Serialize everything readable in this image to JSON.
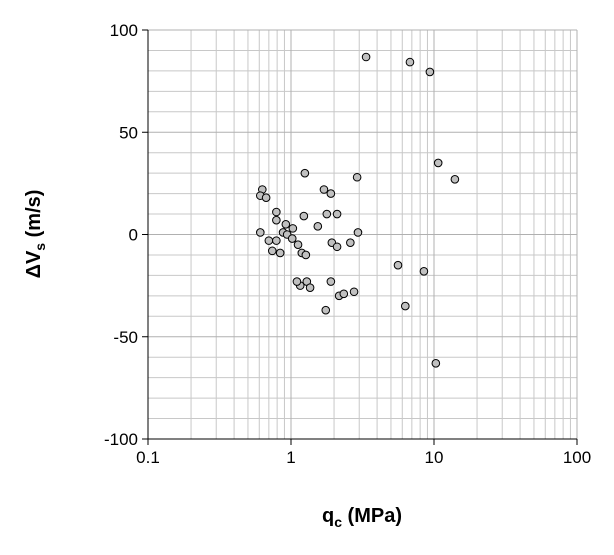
{
  "chart_data": {
    "type": "scatter",
    "log_x": true,
    "grid": true,
    "xlabel": [
      "q",
      "c",
      " (MPa)"
    ],
    "ylabel": [
      "ΔV",
      "s",
      " (m/s)"
    ],
    "xlim": [
      0.1,
      100
    ],
    "xticks": [
      0.1,
      1,
      10,
      100
    ],
    "ylim": [
      -100,
      100
    ],
    "yticks": [
      -100,
      -50,
      0,
      50,
      100
    ],
    "x_minor_grid": [
      0.2,
      0.3,
      0.4,
      0.5,
      0.6,
      0.7,
      0.8,
      0.9,
      2,
      3,
      4,
      5,
      6,
      7,
      8,
      9,
      20,
      30,
      40,
      50,
      60,
      70,
      80,
      90
    ],
    "y_minor_grid": [
      -90,
      -80,
      -70,
      -60,
      -40,
      -30,
      -20,
      -10,
      10,
      20,
      30,
      40,
      60,
      70,
      80,
      90
    ],
    "marker_color": "#c0c0c0",
    "x": [
      3.35,
      6.79,
      9.36,
      10.7,
      14.0,
      2.9,
      1.25,
      0.63,
      0.61,
      0.67,
      0.79,
      1.23,
      0.79,
      0.92,
      1.03,
      0.61,
      0.88,
      0.94,
      1.02,
      0.7,
      0.79,
      0.74,
      0.84,
      1.12,
      1.19,
      1.27,
      1.7,
      1.9,
      1.78,
      2.1,
      1.54,
      1.93,
      2.1,
      2.6,
      2.94,
      1.29,
      1.36,
      1.16,
      1.1,
      1.9,
      1.75,
      2.17,
      2.34,
      2.76,
      5.6,
      8.5,
      6.3,
      10.3
    ],
    "values": [
      86.8,
      84.3,
      79.5,
      35,
      27,
      28,
      30,
      22,
      19,
      18,
      11,
      9,
      7,
      5,
      3,
      1,
      1,
      0,
      -2,
      -3,
      -3,
      -8,
      -9,
      -5,
      -9,
      -10,
      22,
      20,
      10,
      10,
      4,
      -4,
      -6,
      -4,
      1,
      -23,
      -26,
      -25,
      -23,
      -23,
      -37,
      -30,
      -29,
      -28,
      -15,
      -18,
      -35,
      -63
    ]
  }
}
